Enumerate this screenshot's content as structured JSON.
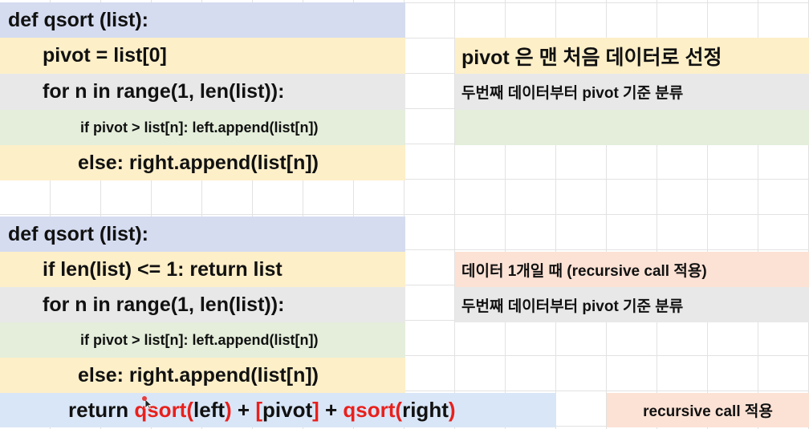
{
  "block1": {
    "def_line": "def qsort (list):",
    "pivot_line": "pivot = list[0]",
    "for_line": "for n in range(1, len(list)):",
    "if_line": "if pivot > list[n]: left.append(list[n])",
    "else_line": "else: right.append(list[n])"
  },
  "notes1": {
    "pivot_note": "pivot 은 맨 처음 데이터로 선정",
    "for_note": "두번째 데이터부터 pivot 기준 분류"
  },
  "block2": {
    "def_line": "def qsort (list):",
    "if_len_line": "if len(list) <= 1: return list",
    "for_line": "for n in range(1, len(list)):",
    "if_line": "if pivot > list[n]: left.append(list[n])",
    "else_line": "else: right.append(list[n])",
    "return_line": {
      "p1": "return ",
      "p2": "qsort(",
      "p3": "left",
      "p4": ")",
      "p5": " + ",
      "p6": "[",
      "p7": "pivot",
      "p8": "]",
      "p9": " + ",
      "p10": "qsort(",
      "p11": "right",
      "p12": ")"
    }
  },
  "notes2": {
    "base_case_note": "데이터 1개일 때 (recursive call 적용)",
    "for_note": "두번째 데이터부터 pivot 기준 분류",
    "recursive_note": "recursive call 적용"
  },
  "colors": {
    "header_blue": "#d5dcf0",
    "code_yellow": "#fdefc8",
    "code_gray": "#e8e8e8",
    "code_green": "#e4eedb",
    "note_orange": "#fce2d5",
    "return_blue": "#d9e6f7",
    "highlight_red": "#e8201c"
  }
}
